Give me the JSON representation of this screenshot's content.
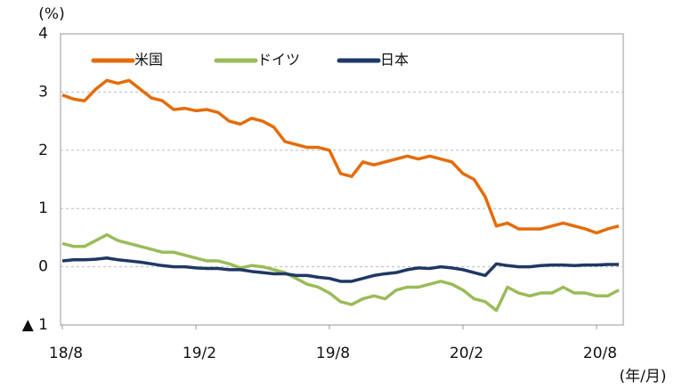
{
  "chart_data": {
    "type": "line",
    "y_unit": "(%)",
    "x_unit": "(年/月)",
    "categories": [
      "18/8",
      null,
      null,
      null,
      null,
      null,
      null,
      null,
      null,
      null,
      null,
      null,
      "19/2",
      null,
      null,
      null,
      null,
      null,
      null,
      null,
      null,
      null,
      null,
      null,
      "19/8",
      null,
      null,
      null,
      null,
      null,
      null,
      null,
      null,
      null,
      null,
      null,
      "20/2",
      null,
      null,
      null,
      null,
      null,
      null,
      null,
      null,
      null,
      null,
      null,
      "20/8",
      null,
      null
    ],
    "ylim": [
      -1,
      4
    ],
    "yticks": [
      {
        "value": -1,
        "label": "▲ 1"
      },
      0,
      1,
      2,
      3,
      4
    ],
    "grid": true,
    "legend": "top-left",
    "series": [
      {
        "name": "米国",
        "color": "#e46c0a",
        "values": [
          2.95,
          2.88,
          2.85,
          3.05,
          3.2,
          3.15,
          3.2,
          3.05,
          2.9,
          2.85,
          2.7,
          2.72,
          2.68,
          2.7,
          2.65,
          2.5,
          2.45,
          2.55,
          2.5,
          2.4,
          2.15,
          2.1,
          2.05,
          2.05,
          2.0,
          1.6,
          1.55,
          1.8,
          1.75,
          1.8,
          1.85,
          1.9,
          1.85,
          1.9,
          1.85,
          1.8,
          1.6,
          1.5,
          1.2,
          0.7,
          0.75,
          0.65,
          0.65,
          0.65,
          0.7,
          0.75,
          0.7,
          0.65,
          0.58,
          0.65,
          0.7
        ]
      },
      {
        "name": "ドイツ",
        "color": "#9bbb59",
        "values": [
          0.4,
          0.35,
          0.35,
          0.45,
          0.55,
          0.45,
          0.4,
          0.35,
          0.3,
          0.25,
          0.25,
          0.2,
          0.15,
          0.1,
          0.1,
          0.05,
          -0.02,
          0.02,
          0.0,
          -0.05,
          -0.1,
          -0.2,
          -0.3,
          -0.35,
          -0.45,
          -0.6,
          -0.65,
          -0.55,
          -0.5,
          -0.55,
          -0.4,
          -0.35,
          -0.35,
          -0.3,
          -0.25,
          -0.3,
          -0.4,
          -0.55,
          -0.6,
          -0.75,
          -0.35,
          -0.45,
          -0.5,
          -0.45,
          -0.45,
          -0.35,
          -0.45,
          -0.45,
          -0.5,
          -0.5,
          -0.4
        ]
      },
      {
        "name": "日本",
        "color": "#1f3864",
        "values": [
          0.1,
          0.12,
          0.12,
          0.13,
          0.15,
          0.12,
          0.1,
          0.08,
          0.05,
          0.02,
          0.0,
          0.0,
          -0.02,
          -0.03,
          -0.03,
          -0.05,
          -0.05,
          -0.08,
          -0.1,
          -0.12,
          -0.12,
          -0.15,
          -0.15,
          -0.18,
          -0.2,
          -0.25,
          -0.25,
          -0.2,
          -0.15,
          -0.12,
          -0.1,
          -0.05,
          -0.02,
          -0.03,
          0.0,
          -0.02,
          -0.05,
          -0.1,
          -0.15,
          0.05,
          0.02,
          0.0,
          0.0,
          0.02,
          0.03,
          0.03,
          0.02,
          0.03,
          0.03,
          0.04,
          0.04
        ]
      }
    ]
  }
}
